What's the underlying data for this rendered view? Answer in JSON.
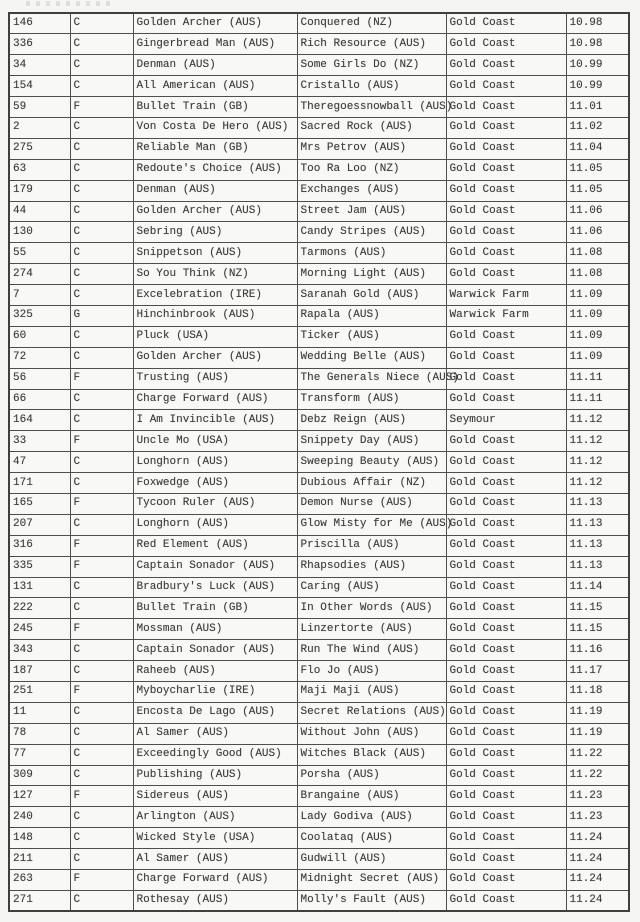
{
  "colors": {
    "background": "#f5f5f3",
    "table_background": "#f8f8f6",
    "border": "#4e4e4e",
    "text": "#3b3b3b"
  },
  "table": {
    "rows": [
      [
        "146",
        "C",
        "Golden Archer (AUS)",
        "Conquered (NZ)",
        "Gold Coast",
        "10.98"
      ],
      [
        "336",
        "C",
        "Gingerbread Man (AUS)",
        "Rich Resource (AUS)",
        "Gold Coast",
        "10.98"
      ],
      [
        "34",
        "C",
        "Denman (AUS)",
        "Some Girls Do (NZ)",
        "Gold Coast",
        "10.99"
      ],
      [
        "154",
        "C",
        "All American (AUS)",
        "Cristallo (AUS)",
        "Gold Coast",
        "10.99"
      ],
      [
        "59",
        "F",
        "Bullet Train (GB)",
        "Theregoessnowball (AUS)",
        "Gold Coast",
        "11.01"
      ],
      [
        "2",
        "C",
        "Von Costa De Hero (AUS)",
        "Sacred Rock (AUS)",
        "Gold Coast",
        "11.02"
      ],
      [
        "275",
        "C",
        "Reliable Man (GB)",
        "Mrs Petrov (AUS)",
        "Gold Coast",
        "11.04"
      ],
      [
        "63",
        "C",
        "Redoute's Choice (AUS)",
        "Too Ra Loo (NZ)",
        "Gold Coast",
        "11.05"
      ],
      [
        "179",
        "C",
        "Denman (AUS)",
        "Exchanges (AUS)",
        "Gold Coast",
        "11.05"
      ],
      [
        "44",
        "C",
        "Golden Archer (AUS)",
        "Street Jam (AUS)",
        "Gold Coast",
        "11.06"
      ],
      [
        "130",
        "C",
        "Sebring (AUS)",
        "Candy Stripes (AUS)",
        "Gold Coast",
        "11.06"
      ],
      [
        "55",
        "C",
        "Snippetson (AUS)",
        "Tarmons (AUS)",
        "Gold Coast",
        "11.08"
      ],
      [
        "274",
        "C",
        "So You Think (NZ)",
        "Morning Light (AUS)",
        "Gold Coast",
        "11.08"
      ],
      [
        "7",
        "C",
        "Excelebration (IRE)",
        "Saranah Gold (AUS)",
        "Warwick Farm",
        "11.09"
      ],
      [
        "325",
        "G",
        "Hinchinbrook (AUS)",
        "Rapala (AUS)",
        "Warwick Farm",
        "11.09"
      ],
      [
        "60",
        "C",
        "Pluck (USA)",
        "Ticker (AUS)",
        "Gold Coast",
        "11.09"
      ],
      [
        "72",
        "C",
        "Golden Archer (AUS)",
        "Wedding Belle (AUS)",
        "Gold Coast",
        "11.09"
      ],
      [
        "56",
        "F",
        "Trusting (AUS)",
        "The Generals Niece (AUS)",
        "Gold Coast",
        "11.11"
      ],
      [
        "66",
        "C",
        "Charge Forward (AUS)",
        "Transform (AUS)",
        "Gold Coast",
        "11.11"
      ],
      [
        "164",
        "C",
        "I Am Invincible (AUS)",
        "Debz Reign (AUS)",
        "Seymour",
        "11.12"
      ],
      [
        "33",
        "F",
        "Uncle Mo (USA)",
        "Snippety Day (AUS)",
        "Gold Coast",
        "11.12"
      ],
      [
        "47",
        "C",
        "Longhorn (AUS)",
        "Sweeping Beauty (AUS)",
        "Gold Coast",
        "11.12"
      ],
      [
        "171",
        "C",
        "Foxwedge (AUS)",
        "Dubious Affair (NZ)",
        "Gold Coast",
        "11.12"
      ],
      [
        "165",
        "F",
        "Tycoon Ruler (AUS)",
        "Demon Nurse (AUS)",
        "Gold Coast",
        "11.13"
      ],
      [
        "207",
        "C",
        "Longhorn (AUS)",
        "Glow Misty for Me (AUS)",
        "Gold Coast",
        "11.13"
      ],
      [
        "316",
        "F",
        "Red Element (AUS)",
        "Priscilla (AUS)",
        "Gold Coast",
        "11.13"
      ],
      [
        "335",
        "F",
        "Captain Sonador (AUS)",
        "Rhapsodies (AUS)",
        "Gold Coast",
        "11.13"
      ],
      [
        "131",
        "C",
        "Bradbury's Luck (AUS)",
        "Caring (AUS)",
        "Gold Coast",
        "11.14"
      ],
      [
        "222",
        "C",
        "Bullet Train (GB)",
        "In Other Words (AUS)",
        "Gold Coast",
        "11.15"
      ],
      [
        "245",
        "F",
        "Mossman (AUS)",
        "Linzertorte (AUS)",
        "Gold Coast",
        "11.15"
      ],
      [
        "343",
        "C",
        "Captain Sonador (AUS)",
        "Run The Wind (AUS)",
        "Gold Coast",
        "11.16"
      ],
      [
        "187",
        "C",
        "Raheeb (AUS)",
        "Flo Jo (AUS)",
        "Gold Coast",
        "11.17"
      ],
      [
        "251",
        "F",
        "Myboycharlie (IRE)",
        "Maji Maji (AUS)",
        "Gold Coast",
        "11.18"
      ],
      [
        "11",
        "C",
        "Encosta De Lago (AUS)",
        "Secret Relations (AUS)",
        "Gold Coast",
        "11.19"
      ],
      [
        "78",
        "C",
        "Al Samer (AUS)",
        "Without John (AUS)",
        "Gold Coast",
        "11.19"
      ],
      [
        "77",
        "C",
        "Exceedingly Good (AUS)",
        "Witches Black (AUS)",
        "Gold Coast",
        "11.22"
      ],
      [
        "309",
        "C",
        "Publishing (AUS)",
        "Porsha (AUS)",
        "Gold Coast",
        "11.22"
      ],
      [
        "127",
        "F",
        "Sidereus (AUS)",
        "Brangaine (AUS)",
        "Gold Coast",
        "11.23"
      ],
      [
        "240",
        "C",
        "Arlington (AUS)",
        "Lady Godiva (AUS)",
        "Gold Coast",
        "11.23"
      ],
      [
        "148",
        "C",
        "Wicked Style (USA)",
        "Coolataq (AUS)",
        "Gold Coast",
        "11.24"
      ],
      [
        "211",
        "C",
        "Al Samer (AUS)",
        "Gudwill (AUS)",
        "Gold Coast",
        "11.24"
      ],
      [
        "263",
        "F",
        "Charge Forward (AUS)",
        "Midnight Secret (AUS)",
        "Gold Coast",
        "11.24"
      ],
      [
        "271",
        "C",
        "Rothesay (AUS)",
        "Molly's Fault (AUS)",
        "Gold Coast",
        "11.24"
      ]
    ]
  }
}
